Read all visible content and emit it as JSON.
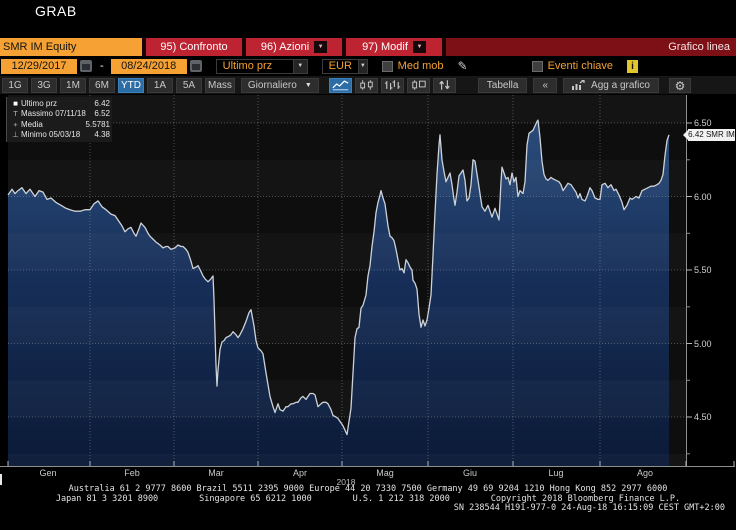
{
  "window": {
    "title": "GRAB"
  },
  "toolbar": {
    "ticker": "SMR IM Equity",
    "menu_buttons": [
      {
        "label": "95) Confronto",
        "has_dropdown": false
      },
      {
        "label": "96) Azioni",
        "has_dropdown": true
      },
      {
        "label": "97) Modif",
        "has_dropdown": true
      }
    ],
    "view_title": "Grafico linea"
  },
  "controls": {
    "date_from": "12/29/2017",
    "date_separator": "-",
    "date_to": "08/24/2018",
    "price_type": "Ultimo prz",
    "currency": "EUR",
    "med_mob_label": "Med mob",
    "eventi_chiave_label": "Eventi chiave",
    "info_badge": "i",
    "med_mob_checked": false,
    "eventi_chiave_checked": false
  },
  "period_bar": {
    "periods": [
      "1G",
      "3G",
      "1M",
      "6M",
      "YTD",
      "1A",
      "5A",
      "Mass"
    ],
    "selected_period": "YTD",
    "frequency": "Giornaliero",
    "chart_type_icons": [
      "line-chart-icon",
      "candlestick-icon",
      "ohlc-bars-icon",
      "candle-box-icon",
      "up-down-arrows-icon"
    ],
    "selected_chart_type": "line-chart-icon",
    "table_label": "Tabella",
    "collapse_label": "«",
    "add_chart_label": "Agg a grafico"
  },
  "legend": {
    "items": [
      {
        "icon": "last-price-marker",
        "glyph": "■",
        "label": "Ultimo prz",
        "value": "6.42"
      },
      {
        "icon": "high-marker",
        "glyph": "T",
        "label": "Massimo 07/11/18",
        "value": "6.52"
      },
      {
        "icon": "mean-marker",
        "glyph": "+",
        "label": "Media",
        "value": "5.5781"
      },
      {
        "icon": "low-marker",
        "glyph": "⊥",
        "label": "Minimo 05/03/18",
        "value": "4.38"
      }
    ]
  },
  "last_price_label": "6.42 SMR IM",
  "chart_data": {
    "type": "area",
    "title": "SMR IM Equity — Grafico linea (YTD, Giornaliero, EUR)",
    "ylabel": "EUR",
    "ylim": [
      4.17,
      6.69
    ],
    "yticks": [
      6.5,
      6.0,
      5.5,
      5.0,
      4.5
    ],
    "grid": true,
    "x_axis_months": [
      "Gen",
      "Feb",
      "Mar",
      "Apr",
      "Mag",
      "Giu",
      "Lug",
      "Ago"
    ],
    "year_label": "2018",
    "stats": {
      "last": 6.42,
      "high": 6.52,
      "high_date": "07/11/18",
      "mean": 5.5781,
      "low": 4.38,
      "low_date": "05/03/18"
    },
    "series": [
      {
        "name": "SMR IM Equity",
        "points": [
          [
            8,
            6.01
          ],
          [
            12,
            6.05
          ],
          [
            15,
            6.02
          ],
          [
            18,
            6.04
          ],
          [
            22,
            6.06
          ],
          [
            26,
            6.02
          ],
          [
            30,
            6.05
          ],
          [
            35,
            6.0
          ],
          [
            39,
            6.04
          ],
          [
            43,
            6.03
          ],
          [
            47,
            5.98
          ],
          [
            51,
            5.99
          ],
          [
            56,
            5.96
          ],
          [
            61,
            5.94
          ],
          [
            66,
            5.92
          ],
          [
            70,
            5.91
          ],
          [
            75,
            5.9
          ],
          [
            80,
            5.9
          ],
          [
            85,
            5.91
          ],
          [
            90,
            5.91
          ],
          [
            94,
            5.95
          ],
          [
            98,
            5.97
          ],
          [
            102,
            5.93
          ],
          [
            106,
            5.91
          ],
          [
            111,
            5.88
          ],
          [
            115,
            5.87
          ],
          [
            118,
            5.84
          ],
          [
            122,
            5.8
          ],
          [
            125,
            5.76
          ],
          [
            128,
            5.78
          ],
          [
            131,
            5.79
          ],
          [
            134,
            5.75
          ],
          [
            136,
            5.73
          ],
          [
            139,
            5.78
          ],
          [
            141,
            5.82
          ],
          [
            145,
            5.79
          ],
          [
            148,
            5.75
          ],
          [
            150,
            5.73
          ],
          [
            153,
            5.71
          ],
          [
            156,
            5.69
          ],
          [
            160,
            5.67
          ],
          [
            163,
            5.65
          ],
          [
            166,
            5.66
          ],
          [
            168,
            5.66
          ],
          [
            171,
            5.64
          ],
          [
            175,
            5.65
          ],
          [
            178,
            5.67
          ],
          [
            181,
            5.66
          ],
          [
            183,
            5.66
          ],
          [
            186,
            5.64
          ],
          [
            188,
            5.62
          ],
          [
            191,
            5.56
          ],
          [
            193,
            5.51
          ],
          [
            196,
            5.52
          ],
          [
            198,
            5.53
          ],
          [
            201,
            5.49
          ],
          [
            203,
            5.46
          ],
          [
            205,
            5.44
          ],
          [
            208,
            5.42
          ],
          [
            211,
            5.44
          ],
          [
            213,
            5.46
          ],
          [
            214,
            5.3
          ],
          [
            216,
            4.85
          ],
          [
            217,
            4.71
          ],
          [
            218,
            4.82
          ],
          [
            220,
            4.96
          ],
          [
            222,
            5.01
          ],
          [
            224,
            5.02
          ],
          [
            226,
            5.04
          ],
          [
            229,
            5.05
          ],
          [
            231,
            5.06
          ],
          [
            233,
            5.08
          ],
          [
            236,
            5.06
          ],
          [
            238,
            5.04
          ],
          [
            240,
            5.06
          ],
          [
            243,
            5.1
          ],
          [
            246,
            5.15
          ],
          [
            249,
            5.21
          ],
          [
            251,
            5.23
          ],
          [
            254,
            5.12
          ],
          [
            256,
            5.02
          ],
          [
            258,
            4.97
          ],
          [
            261,
            4.95
          ],
          [
            263,
            4.93
          ],
          [
            266,
            4.8
          ],
          [
            268,
            4.72
          ],
          [
            270,
            4.64
          ],
          [
            273,
            4.57
          ],
          [
            275,
            4.53
          ],
          [
            278,
            4.59
          ],
          [
            280,
            4.55
          ],
          [
            283,
            4.54
          ],
          [
            286,
            4.57
          ],
          [
            288,
            4.57
          ],
          [
            291,
            4.59
          ],
          [
            293,
            4.59
          ],
          [
            296,
            4.6
          ],
          [
            298,
            4.6
          ],
          [
            301,
            4.63
          ],
          [
            303,
            4.64
          ],
          [
            306,
            4.62
          ],
          [
            308,
            4.64
          ],
          [
            310,
            4.66
          ],
          [
            313,
            4.66
          ],
          [
            315,
            4.65
          ],
          [
            318,
            4.57
          ],
          [
            321,
            4.59
          ],
          [
            323,
            4.6
          ],
          [
            326,
            4.6
          ],
          [
            328,
            4.59
          ],
          [
            331,
            4.55
          ],
          [
            333,
            4.51
          ],
          [
            336,
            4.5
          ],
          [
            338,
            4.49
          ],
          [
            341,
            4.46
          ],
          [
            343,
            4.44
          ],
          [
            345,
            4.41
          ],
          [
            347,
            4.38
          ],
          [
            349,
            4.47
          ],
          [
            351,
            4.56
          ],
          [
            353,
            4.8
          ],
          [
            355,
            5.04
          ],
          [
            357,
            5.1
          ],
          [
            359,
            5.11
          ],
          [
            361,
            5.24
          ],
          [
            363,
            5.26
          ],
          [
            366,
            5.33
          ],
          [
            368,
            5.46
          ],
          [
            370,
            5.53
          ],
          [
            372,
            5.66
          ],
          [
            374,
            5.76
          ],
          [
            376,
            5.89
          ],
          [
            378,
            5.96
          ],
          [
            380,
            6.01
          ],
          [
            381,
            6.04
          ],
          [
            383,
            5.99
          ],
          [
            385,
            5.95
          ],
          [
            388,
            5.8
          ],
          [
            390,
            5.73
          ],
          [
            392,
            5.72
          ],
          [
            394,
            5.7
          ],
          [
            396,
            5.64
          ],
          [
            398,
            5.57
          ],
          [
            400,
            5.5
          ],
          [
            402,
            5.51
          ],
          [
            404,
            5.48
          ],
          [
            406,
            5.57
          ],
          [
            408,
            5.55
          ],
          [
            410,
            5.52
          ],
          [
            412,
            5.5
          ],
          [
            413,
            5.43
          ],
          [
            415,
            5.41
          ],
          [
            417,
            5.37
          ],
          [
            419,
            5.2
          ],
          [
            421,
            5.11
          ],
          [
            423,
            5.16
          ],
          [
            425,
            5.12
          ],
          [
            427,
            5.16
          ],
          [
            429,
            5.24
          ],
          [
            431,
            5.33
          ],
          [
            433,
            5.6
          ],
          [
            435,
            5.89
          ],
          [
            437,
            6.15
          ],
          [
            439,
            6.35
          ],
          [
            440,
            6.42
          ],
          [
            442,
            6.25
          ],
          [
            444,
            6.17
          ],
          [
            446,
            6.1
          ],
          [
            448,
            6.13
          ],
          [
            450,
            6.16
          ],
          [
            452,
            6.08
          ],
          [
            454,
            5.98
          ],
          [
            455,
            5.94
          ],
          [
            457,
            6.03
          ],
          [
            459,
            6.14
          ],
          [
            461,
            6.16
          ],
          [
            463,
            6.18
          ],
          [
            465,
            6.11
          ],
          [
            467,
            5.97
          ],
          [
            469,
            5.99
          ],
          [
            471,
            6.08
          ],
          [
            473,
            6.25
          ],
          [
            475,
            6.24
          ],
          [
            478,
            6.11
          ],
          [
            480,
            6.02
          ],
          [
            482,
            5.93
          ],
          [
            485,
            5.9
          ],
          [
            488,
            5.94
          ],
          [
            490,
            5.9
          ],
          [
            492,
            5.86
          ],
          [
            495,
            5.92
          ],
          [
            497,
            5.88
          ],
          [
            499,
            5.84
          ],
          [
            501,
            6.1
          ],
          [
            502,
            6.2
          ],
          [
            504,
            6.16
          ],
          [
            506,
            6.12
          ],
          [
            508,
            6.13
          ],
          [
            510,
            6.08
          ],
          [
            512,
            6.16
          ],
          [
            514,
            6.1
          ],
          [
            516,
            6.13
          ],
          [
            518,
            6.0
          ],
          [
            520,
            6.04
          ],
          [
            523,
            6.02
          ],
          [
            525,
            6.1
          ],
          [
            527,
            6.35
          ],
          [
            529,
            6.43
          ],
          [
            531,
            6.44
          ],
          [
            533,
            6.45
          ],
          [
            535,
            6.48
          ],
          [
            537,
            6.51
          ],
          [
            538,
            6.52
          ],
          [
            540,
            6.4
          ],
          [
            542,
            6.24
          ],
          [
            544,
            6.15
          ],
          [
            546,
            6.12
          ],
          [
            548,
            6.11
          ],
          [
            551,
            6.13
          ],
          [
            553,
            6.12
          ],
          [
            556,
            6.11
          ],
          [
            559,
            6.1
          ],
          [
            561,
            6.08
          ],
          [
            563,
            6.04
          ],
          [
            565,
            6.06
          ],
          [
            568,
            6.09
          ],
          [
            571,
            6.08
          ],
          [
            574,
            6.05
          ],
          [
            576,
            6.03
          ],
          [
            578,
            5.99
          ],
          [
            580,
            6.02
          ],
          [
            582,
            5.98
          ],
          [
            585,
            5.97
          ],
          [
            587,
            6.0
          ],
          [
            590,
            6.06
          ],
          [
            592,
            6.04
          ],
          [
            595,
            5.99
          ],
          [
            598,
            5.98
          ],
          [
            600,
            5.98
          ],
          [
            602,
            6.08
          ],
          [
            605,
            6.09
          ],
          [
            608,
            6.06
          ],
          [
            611,
            6.08
          ],
          [
            614,
            6.04
          ],
          [
            616,
            6.05
          ],
          [
            619,
            6.01
          ],
          [
            622,
            5.96
          ],
          [
            624,
            5.91
          ],
          [
            627,
            5.94
          ],
          [
            630,
            5.99
          ],
          [
            632,
            5.98
          ],
          [
            636,
            6.0
          ],
          [
            639,
            5.99
          ],
          [
            642,
            6.04
          ],
          [
            645,
            6.05
          ],
          [
            648,
            6.06
          ],
          [
            651,
            6.07
          ],
          [
            654,
            6.07
          ],
          [
            657,
            6.08
          ],
          [
            659,
            6.09
          ],
          [
            661,
            6.11
          ],
          [
            663,
            6.15
          ],
          [
            665,
            6.28
          ],
          [
            667,
            6.38
          ],
          [
            669,
            6.42
          ]
        ]
      }
    ]
  },
  "footer": {
    "line1": "Australia 61 2 9777 8600 Brazil 5511 2395 9000 Europe 44 20 7330 7500 Germany 49 69 9204 1210 Hong Kong 852 2977 6000",
    "line2": "Japan 81 3 3201 8900        Singapore 65 6212 1000        U.S. 1 212 318 2000        Copyright 2018 Bloomberg Finance L.P.",
    "line3": "SN 238544 H191-977-0 24-Aug-18 16:15:09 CEST GMT+2:00"
  },
  "colors": {
    "amber": "#F5A133",
    "button_red": "#BE2332",
    "title_bar_red": "#7C1016",
    "selected_blue": "#2D6DA6",
    "area_fill_top": "#2C4F80",
    "area_fill_mid": "#17305B",
    "area_fill_bottom": "#0B1A38",
    "price_line": "#CDD2D8",
    "plot_background": "#0E0E0E",
    "info_yellow": "#E3C52E"
  }
}
